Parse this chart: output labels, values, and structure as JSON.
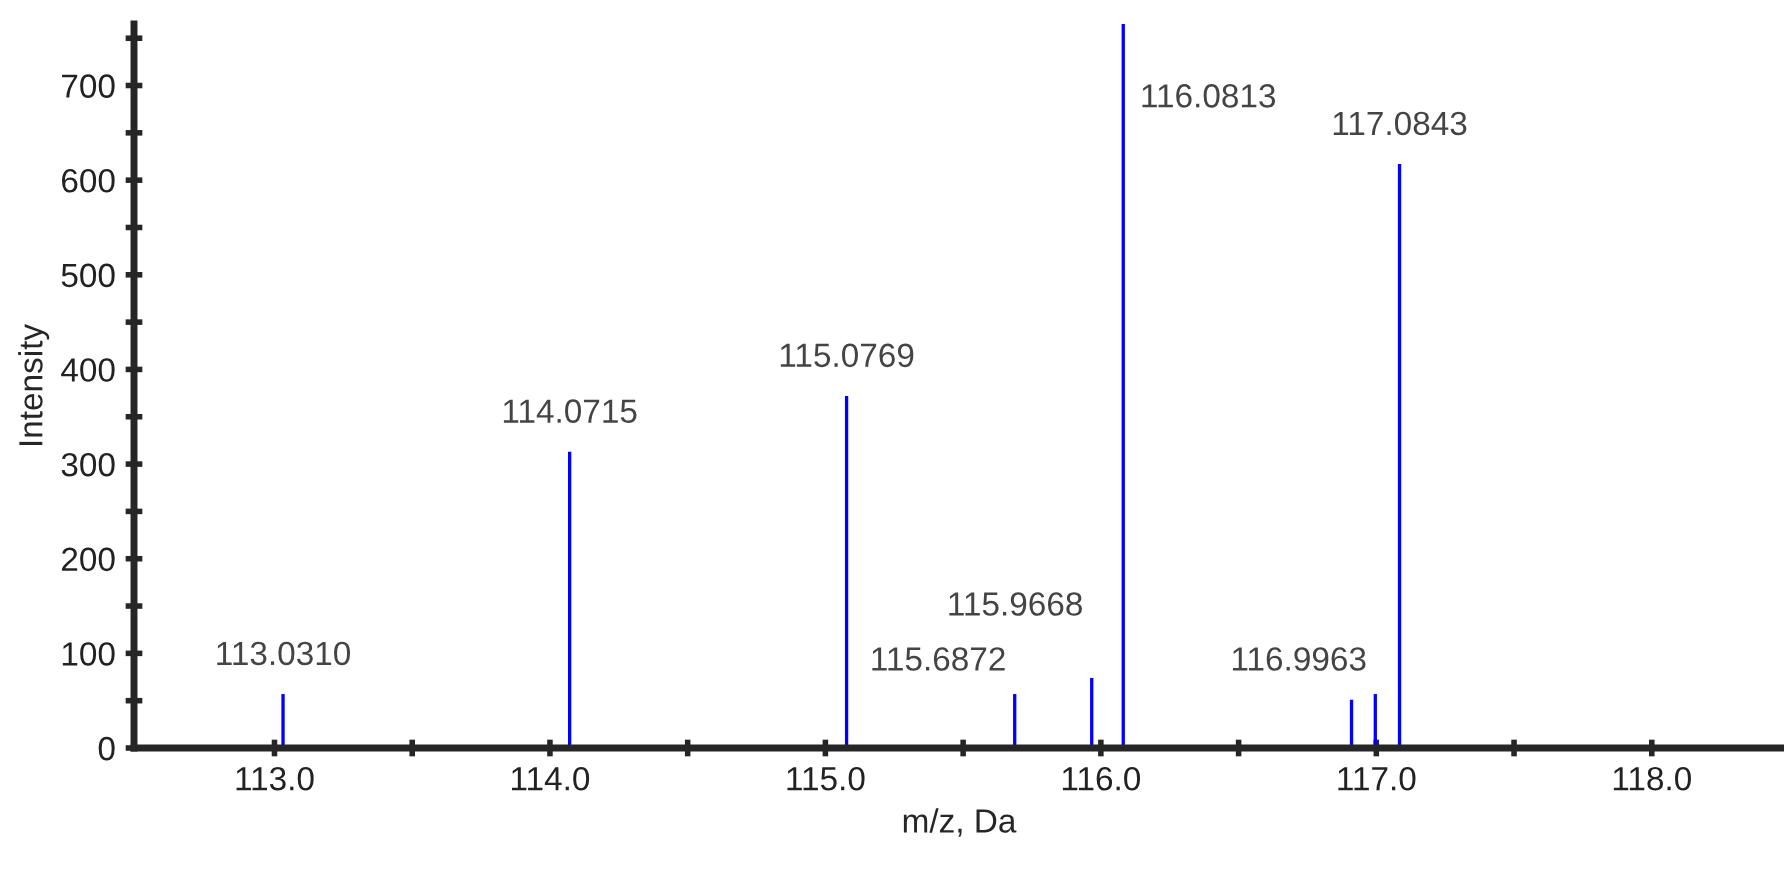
{
  "chart_data": {
    "type": "bar",
    "xlabel": "m/z, Da",
    "ylabel": "Intensity",
    "x": [
      113.031,
      114.0715,
      115.0769,
      115.6872,
      115.9668,
      116.0813,
      116.91,
      116.9963,
      117.0843
    ],
    "values": [
      57,
      313,
      372,
      57,
      74,
      765,
      51,
      57,
      617
    ],
    "color": "#0000ff",
    "xlim": [
      112.49,
      118.48
    ],
    "ylim": [
      0,
      765
    ],
    "xticks": [
      {
        "value": 113.0,
        "label": "113.0"
      },
      {
        "value": 113.5,
        "label": null
      },
      {
        "value": 114.0,
        "label": "114.0"
      },
      {
        "value": 114.5,
        "label": null
      },
      {
        "value": 115.0,
        "label": "115.0"
      },
      {
        "value": 115.5,
        "label": null
      },
      {
        "value": 116.0,
        "label": "116.0"
      },
      {
        "value": 116.5,
        "label": null
      },
      {
        "value": 117.0,
        "label": "117.0"
      },
      {
        "value": 117.5,
        "label": null
      },
      {
        "value": 118.0,
        "label": "118.0"
      }
    ],
    "yticks": [
      0,
      {
        "value": 50,
        "label": null
      },
      100,
      {
        "value": 150,
        "label": null
      },
      200,
      {
        "value": 250,
        "label": null
      },
      300,
      {
        "value": 350,
        "label": null
      },
      400,
      {
        "value": 450,
        "label": null
      },
      500,
      {
        "value": 550,
        "label": null
      },
      600,
      {
        "value": 650,
        "label": null
      },
      700,
      {
        "value": 750,
        "label": null
      }
    ],
    "grid": false,
    "annotations": [
      {
        "text": "113.0310",
        "x": 113.031,
        "y": 57
      },
      {
        "text": "114.0715",
        "x": 114.0715,
        "y": 313
      },
      {
        "text": "115.0769",
        "x": 115.0769,
        "y": 372
      },
      {
        "text": "115.6872",
        "x": 115.6872,
        "y": 57
      },
      {
        "text": "115.9668",
        "x": 115.9668,
        "y": 74
      },
      {
        "text": "116.0813",
        "x": 116.0813,
        "y": 765
      },
      {
        "text": "116.9963",
        "x": 116.9963,
        "y": 57
      },
      {
        "text": "117.0843",
        "x": 117.0843,
        "y": 617
      }
    ]
  }
}
